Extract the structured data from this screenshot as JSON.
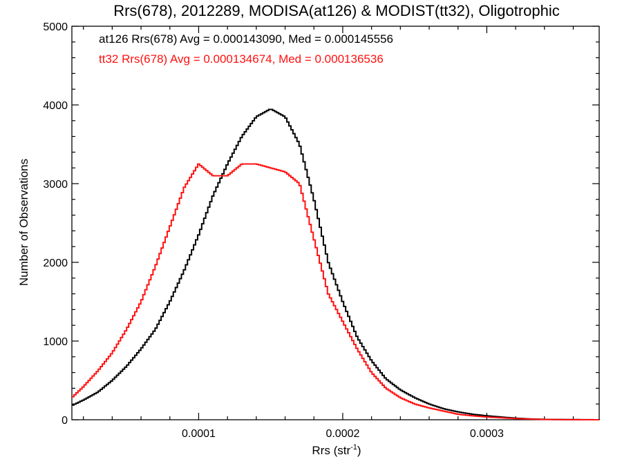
{
  "chart_data": {
    "type": "line",
    "title": "Rrs(678), 2012289, MODISA(at126) & MODIST(tt32), Oligotrophic",
    "xlabel": "Rrs (str",
    "xlabel_sup": "-1",
    "xlabel_close": ")",
    "ylabel": "Number of Observations",
    "xlim": [
      1.2e-05,
      0.000378
    ],
    "ylim": [
      0,
      5000
    ],
    "xticks": [
      {
        "value": 0.0001,
        "label": "0.0001"
      },
      {
        "value": 0.0002,
        "label": "0.0002"
      },
      {
        "value": 0.0003,
        "label": "0.0003"
      }
    ],
    "yticks": [
      {
        "value": 0,
        "label": "0"
      },
      {
        "value": 1000,
        "label": "1000"
      },
      {
        "value": 2000,
        "label": "2000"
      },
      {
        "value": 3000,
        "label": "3000"
      },
      {
        "value": 4000,
        "label": "4000"
      },
      {
        "value": 5000,
        "label": "5000"
      }
    ],
    "legend_placement": "top-left",
    "series": [
      {
        "name": "at126",
        "legend": "at126 Rrs(678) Avg = 0.000143090, Med = 0.000145556",
        "color": "#000000",
        "x": [
          1.2e-05,
          2e-05,
          3e-05,
          4e-05,
          5e-05,
          6e-05,
          7e-05,
          8e-05,
          9e-05,
          0.0001,
          0.00011,
          0.00012,
          0.00013,
          0.00014,
          0.00015,
          0.00016,
          0.00017,
          0.00018,
          0.00019,
          0.0002,
          0.00021,
          0.00022,
          0.00023,
          0.00024,
          0.00025,
          0.00026,
          0.00027,
          0.00028,
          0.00029,
          0.0003,
          0.00031,
          0.00032,
          0.00033,
          0.00034,
          0.00035,
          0.00036,
          0.00037,
          0.000378
        ],
        "y": [
          180,
          250,
          350,
          500,
          680,
          900,
          1150,
          1500,
          1900,
          2350,
          2850,
          3250,
          3600,
          3850,
          3950,
          3850,
          3500,
          2800,
          2000,
          1500,
          1050,
          750,
          520,
          380,
          280,
          200,
          140,
          100,
          70,
          50,
          35,
          20,
          10,
          5,
          3,
          2,
          1,
          0
        ]
      },
      {
        "name": "tt32",
        "legend": "tt32 Rrs(678) Avg = 0.000134674, Med = 0.000136536",
        "color": "#ff1010",
        "x": [
          1.2e-05,
          2e-05,
          3e-05,
          4e-05,
          5e-05,
          6e-05,
          7e-05,
          8e-05,
          9e-05,
          0.0001,
          0.00011,
          0.00012,
          0.00013,
          0.00014,
          0.00015,
          0.00016,
          0.00017,
          0.00018,
          0.00019,
          0.0002,
          0.00021,
          0.00022,
          0.00023,
          0.00024,
          0.00025,
          0.00026,
          0.00027,
          0.00028,
          0.00029,
          0.0003,
          0.00031,
          0.00032,
          0.00033,
          0.00034,
          0.00035,
          0.00036,
          0.00037,
          0.000378
        ],
        "y": [
          280,
          420,
          620,
          850,
          1150,
          1500,
          1950,
          2450,
          2950,
          3250,
          3100,
          3100,
          3250,
          3250,
          3200,
          3150,
          3000,
          2300,
          1600,
          1250,
          900,
          600,
          400,
          280,
          200,
          150,
          110,
          70,
          50,
          35,
          25,
          15,
          8,
          4,
          2,
          1,
          0,
          0
        ]
      }
    ]
  }
}
